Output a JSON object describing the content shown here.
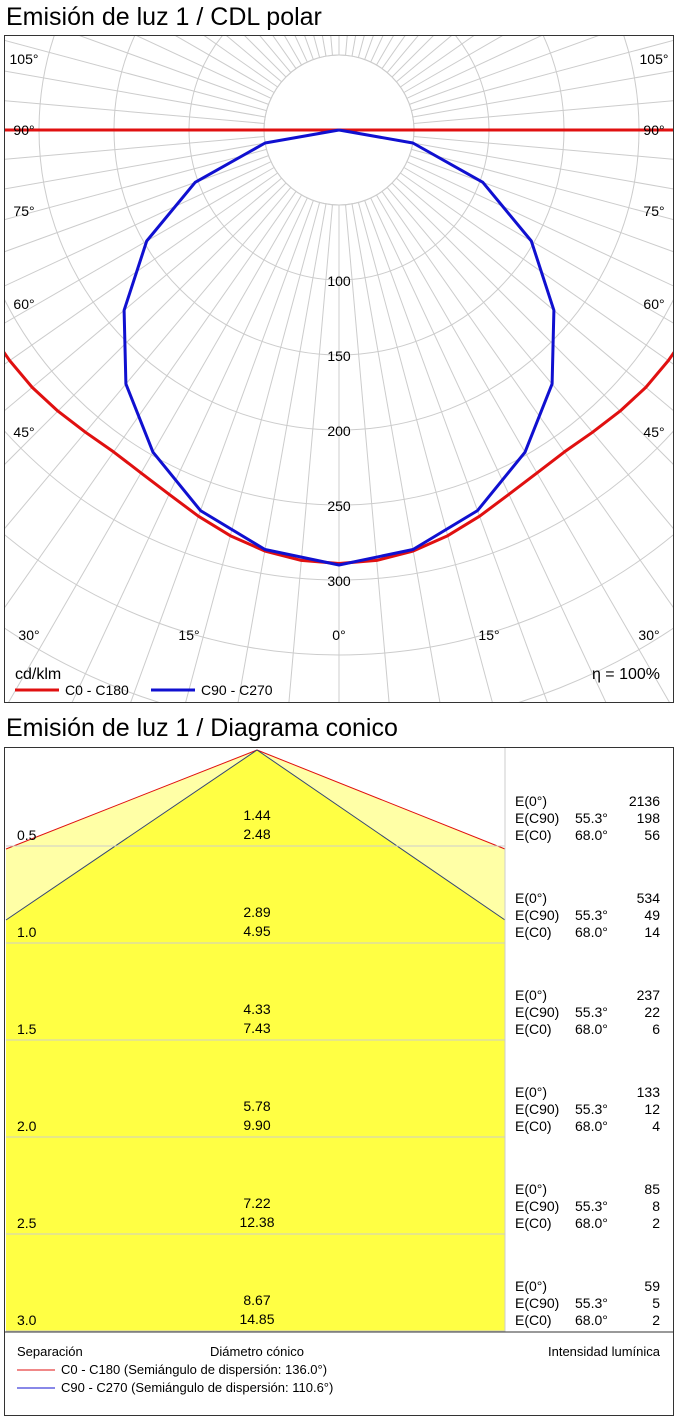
{
  "polar_title": "Emisión de luz 1 / CDL polar",
  "cone_title": "Emisión de luz 1 / Diagrama conico",
  "units_label": "cd/klm",
  "efficiency_label": "η = 100%",
  "colors": {
    "c0": "#e01010",
    "c90": "#1010d0",
    "grid": "#cccccc",
    "yellow": "#ffff44",
    "yellow_light": "#ffffa6"
  },
  "chart_data": [
    {
      "type": "polar",
      "title": "Emisión de luz 1 / CDL polar",
      "unit": "cd/klm",
      "efficiency": "η = 100%",
      "radial_ticks": [
        100,
        150,
        200,
        250,
        300
      ],
      "angle_labels": [
        "0°",
        "15°",
        "30°",
        "45°",
        "60°",
        "75°",
        "90°",
        "105°"
      ],
      "series": [
        {
          "name": "C0 - C180",
          "color": "#e01010",
          "angles": [
            0,
            5,
            10,
            15,
            20,
            25,
            30,
            35,
            40,
            45,
            50,
            55,
            60,
            65,
            70,
            75,
            80,
            85,
            90
          ],
          "values": [
            289,
            288,
            285,
            280,
            274,
            268,
            264,
            262,
            263,
            265,
            267,
            268,
            269,
            270,
            272,
            278,
            272,
            260,
            258
          ]
        },
        {
          "name": "C90 - C270",
          "color": "#1010d0",
          "angles": [
            0,
            10,
            20,
            30,
            40,
            50,
            60,
            70,
            80,
            90
          ],
          "values": [
            290,
            284,
            270,
            248,
            221,
            187,
            148,
            102,
            50,
            0
          ]
        }
      ]
    },
    {
      "type": "table",
      "title": "Emisión de luz 1 / Diagrama conico",
      "columns": [
        "Separación",
        "Diámetro cónico",
        "Intensidad lumínica"
      ],
      "rows": [
        {
          "distance": "0.5",
          "d_c90": "1.44",
          "d_c0": "2.48",
          "e0": "2136",
          "e_c90": "198",
          "e_c0": "56"
        },
        {
          "distance": "1.0",
          "d_c90": "2.89",
          "d_c0": "4.95",
          "e0": "534",
          "e_c90": "49",
          "e_c0": "14"
        },
        {
          "distance": "1.5",
          "d_c90": "4.33",
          "d_c0": "7.43",
          "e0": "237",
          "e_c90": "22",
          "e_c0": "6"
        },
        {
          "distance": "2.0",
          "d_c90": "5.78",
          "d_c0": "9.90",
          "e0": "133",
          "e_c90": "12",
          "e_c0": "4"
        },
        {
          "distance": "2.5",
          "d_c90": "7.22",
          "d_c0": "12.38",
          "e0": "85",
          "e_c90": "8",
          "e_c0": "2"
        },
        {
          "distance": "3.0",
          "d_c90": "8.67",
          "d_c0": "14.85",
          "e0": "59",
          "e_c90": "5",
          "e_c0": "2"
        }
      ],
      "labels": {
        "e0": "E(0°)",
        "e_c90": "E(C90)",
        "e_c0": "E(C0)",
        "angle_c90": "55.3°",
        "angle_c0": "68.0°"
      },
      "legend": [
        {
          "name": "C0 - C180 (Semiángulo de dispersión: 136.0°)",
          "color": "#e01010"
        },
        {
          "name": "C90 - C270 (Semiángulo de dispersión: 110.6°)",
          "color": "#1010d0"
        }
      ]
    }
  ]
}
